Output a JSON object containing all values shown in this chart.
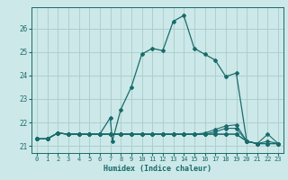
{
  "xlabel": "Humidex (Indice chaleur)",
  "ylabel": "",
  "background_color": "#cce8e8",
  "line_color": "#1a6b6b",
  "grid_color": "#aacccc",
  "xlim": [
    -0.5,
    23.5
  ],
  "ylim": [
    20.7,
    26.9
  ],
  "xticks": [
    0,
    1,
    2,
    3,
    4,
    5,
    6,
    7,
    8,
    9,
    10,
    11,
    12,
    13,
    14,
    15,
    16,
    17,
    18,
    19,
    20,
    21,
    22,
    23
  ],
  "yticks": [
    21,
    22,
    23,
    24,
    25,
    26
  ],
  "lines": [
    {
      "x": [
        0,
        1,
        2,
        3,
        4,
        5,
        6,
        7,
        7.2,
        8,
        9,
        10,
        11,
        12,
        13,
        14,
        15,
        16,
        17,
        18,
        19,
        20,
        21,
        22,
        23
      ],
      "y": [
        21.3,
        21.3,
        21.55,
        21.5,
        21.5,
        21.5,
        21.5,
        22.2,
        21.2,
        22.55,
        23.5,
        24.9,
        25.15,
        25.05,
        26.3,
        26.55,
        25.15,
        24.9,
        24.65,
        23.95,
        24.1,
        21.2,
        21.1,
        21.1,
        21.1
      ],
      "marker": "D",
      "markersize": 2.0,
      "linewidth": 0.9
    },
    {
      "x": [
        0,
        1,
        2,
        3,
        4,
        5,
        6,
        7,
        8,
        9,
        10,
        11,
        12,
        13,
        14,
        15,
        16,
        17,
        18,
        19,
        20,
        21,
        22,
        23
      ],
      "y": [
        21.3,
        21.3,
        21.55,
        21.5,
        21.5,
        21.5,
        21.5,
        21.5,
        21.5,
        21.5,
        21.5,
        21.5,
        21.5,
        21.5,
        21.5,
        21.5,
        21.55,
        21.7,
        21.85,
        21.9,
        21.2,
        21.1,
        21.1,
        21.1
      ],
      "marker": "D",
      "markersize": 2.0,
      "linewidth": 0.8
    },
    {
      "x": [
        0,
        1,
        2,
        3,
        4,
        5,
        6,
        7,
        8,
        9,
        10,
        11,
        12,
        13,
        14,
        15,
        16,
        17,
        18,
        19,
        20,
        21,
        22,
        23
      ],
      "y": [
        21.3,
        21.3,
        21.55,
        21.5,
        21.5,
        21.5,
        21.5,
        21.5,
        21.5,
        21.5,
        21.5,
        21.5,
        21.5,
        21.5,
        21.5,
        21.5,
        21.5,
        21.6,
        21.75,
        21.75,
        21.2,
        21.1,
        21.2,
        21.1
      ],
      "marker": "D",
      "markersize": 2.0,
      "linewidth": 0.8
    },
    {
      "x": [
        0,
        1,
        2,
        3,
        4,
        5,
        6,
        7,
        8,
        9,
        10,
        11,
        12,
        13,
        14,
        15,
        16,
        17,
        18,
        19,
        20,
        21,
        22,
        23
      ],
      "y": [
        21.3,
        21.3,
        21.55,
        21.5,
        21.5,
        21.5,
        21.5,
        21.5,
        21.5,
        21.5,
        21.5,
        21.5,
        21.5,
        21.5,
        21.5,
        21.5,
        21.5,
        21.5,
        21.5,
        21.5,
        21.2,
        21.1,
        21.5,
        21.1
      ],
      "marker": "D",
      "markersize": 2.0,
      "linewidth": 0.8
    },
    {
      "x": [
        0,
        1,
        2,
        3,
        4,
        5,
        6,
        7,
        8,
        9,
        10,
        11,
        12,
        13,
        14,
        15,
        16,
        17,
        18,
        19,
        20,
        21,
        22,
        23
      ],
      "y": [
        21.3,
        21.3,
        21.55,
        21.5,
        21.5,
        21.5,
        21.5,
        21.5,
        21.5,
        21.5,
        21.5,
        21.5,
        21.5,
        21.5,
        21.5,
        21.5,
        21.5,
        21.5,
        21.5,
        21.5,
        21.2,
        21.1,
        21.1,
        21.1
      ],
      "marker": "D",
      "markersize": 2.0,
      "linewidth": 0.8
    }
  ]
}
